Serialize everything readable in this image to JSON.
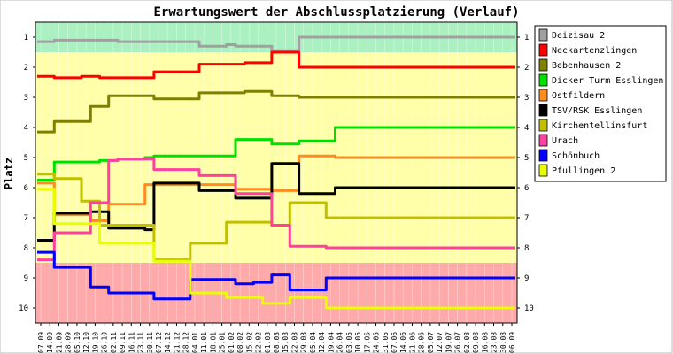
{
  "chart_data": {
    "type": "line",
    "title": "Erwartungswert der Abschlussplatzierung (Verlauf)",
    "ylabel": "Platz",
    "xlabel": "",
    "ylim": [
      10.5,
      0.5
    ],
    "y_ticks": [
      "1",
      "2",
      "3",
      "4",
      "5",
      "6",
      "7",
      "8",
      "9",
      "10"
    ],
    "background_bands": [
      {
        "from": 0.5,
        "to": 1.5,
        "color": "#aaf0c0"
      },
      {
        "from": 1.5,
        "to": 8.5,
        "color": "#ffffaa"
      },
      {
        "from": 8.5,
        "to": 10.5,
        "color": "#ffaaaa"
      }
    ],
    "x": [
      "07.09",
      "14.09",
      "21.09",
      "28.09",
      "05.10",
      "12.10",
      "19.10",
      "26.10",
      "02.11",
      "09.11",
      "16.11",
      "23.11",
      "30.11",
      "07.12",
      "14.12",
      "21.12",
      "28.12",
      "04.01",
      "11.01",
      "18.01",
      "25.01",
      "01.02",
      "08.02",
      "15.02",
      "22.02",
      "01.03",
      "08.03",
      "15.03",
      "22.03",
      "29.03",
      "05.04",
      "12.04",
      "19.04",
      "26.04",
      "03.05",
      "10.05",
      "17.05",
      "24.05",
      "31.05",
      "07.06",
      "14.06",
      "21.06",
      "28.06",
      "05.07",
      "12.07",
      "19.07",
      "26.07",
      "02.08",
      "09.08",
      "16.08",
      "23.08",
      "30.08",
      "06.09"
    ],
    "legend_position": "right",
    "series": [
      {
        "name": "Deizisau 2",
        "color": "#a0a0a0",
        "values": [
          1.15,
          1.15,
          1.1,
          1.1,
          1.1,
          1.1,
          1.1,
          1.1,
          1.1,
          1.15,
          1.15,
          1.15,
          1.15,
          1.15,
          1.15,
          1.15,
          1.15,
          1.15,
          1.3,
          1.3,
          1.3,
          1.25,
          1.3,
          1.3,
          1.3,
          1.3,
          1.45,
          1.45,
          1.45,
          1.0,
          1.0,
          1.0,
          1.0,
          1.0,
          1.0,
          1.0,
          1.0,
          1.0,
          1.0,
          1.0,
          1.0,
          1.0,
          1.0,
          1.0,
          1.0,
          1.0,
          1.0,
          1.0,
          1.0,
          1.0,
          1.0,
          1.0,
          1.0
        ]
      },
      {
        "name": "Neckartenzlingen",
        "color": "#ff0000",
        "values": [
          2.3,
          2.3,
          2.35,
          2.35,
          2.35,
          2.3,
          2.3,
          2.35,
          2.35,
          2.35,
          2.35,
          2.35,
          2.35,
          2.15,
          2.15,
          2.15,
          2.15,
          2.15,
          1.9,
          1.9,
          1.9,
          1.9,
          1.9,
          1.85,
          1.85,
          1.85,
          1.5,
          1.5,
          1.5,
          2.0,
          2.0,
          2.0,
          2.0,
          2.0,
          2.0,
          2.0,
          2.0,
          2.0,
          2.0,
          2.0,
          2.0,
          2.0,
          2.0,
          2.0,
          2.0,
          2.0,
          2.0,
          2.0,
          2.0,
          2.0,
          2.0,
          2.0,
          2.0
        ]
      },
      {
        "name": "Bebenhausen 2",
        "color": "#808000",
        "values": [
          4.15,
          4.15,
          3.8,
          3.8,
          3.8,
          3.8,
          3.3,
          3.3,
          2.95,
          2.95,
          2.95,
          2.95,
          2.95,
          3.05,
          3.05,
          3.05,
          3.05,
          3.05,
          2.85,
          2.85,
          2.85,
          2.85,
          2.85,
          2.8,
          2.8,
          2.8,
          2.95,
          2.95,
          2.95,
          3.0,
          3.0,
          3.0,
          3.0,
          3.0,
          3.0,
          3.0,
          3.0,
          3.0,
          3.0,
          3.0,
          3.0,
          3.0,
          3.0,
          3.0,
          3.0,
          3.0,
          3.0,
          3.0,
          3.0,
          3.0,
          3.0,
          3.0,
          3.0
        ]
      },
      {
        "name": "Dicker Turm Esslingen",
        "color": "#00e000",
        "values": [
          5.75,
          5.75,
          5.15,
          5.15,
          5.15,
          5.15,
          5.15,
          5.1,
          5.1,
          5.05,
          5.05,
          5.05,
          5.0,
          4.95,
          4.95,
          4.95,
          4.95,
          4.95,
          4.95,
          4.95,
          4.95,
          4.95,
          4.4,
          4.4,
          4.4,
          4.4,
          4.55,
          4.55,
          4.55,
          4.45,
          4.45,
          4.45,
          4.45,
          4.0,
          4.0,
          4.0,
          4.0,
          4.0,
          4.0,
          4.0,
          4.0,
          4.0,
          4.0,
          4.0,
          4.0,
          4.0,
          4.0,
          4.0,
          4.0,
          4.0,
          4.0,
          4.0,
          4.0
        ]
      },
      {
        "name": "Ostfildern",
        "color": "#ff8c20",
        "values": [
          5.85,
          5.85,
          6.9,
          6.9,
          6.9,
          6.9,
          7.1,
          7.1,
          6.55,
          6.55,
          6.55,
          6.55,
          5.9,
          5.9,
          5.9,
          5.9,
          5.9,
          5.9,
          5.9,
          5.9,
          5.9,
          5.9,
          6.05,
          6.05,
          6.05,
          6.05,
          6.1,
          6.1,
          6.1,
          4.95,
          4.95,
          4.95,
          4.95,
          5.0,
          5.0,
          5.0,
          5.0,
          5.0,
          5.0,
          5.0,
          5.0,
          5.0,
          5.0,
          5.0,
          5.0,
          5.0,
          5.0,
          5.0,
          5.0,
          5.0,
          5.0,
          5.0,
          5.0
        ]
      },
      {
        "name": "TSV/RSK Esslingen",
        "color": "#000000",
        "values": [
          7.75,
          7.75,
          6.85,
          6.85,
          6.85,
          6.85,
          6.8,
          6.8,
          7.35,
          7.35,
          7.35,
          7.35,
          7.4,
          5.85,
          5.85,
          5.85,
          5.85,
          5.85,
          6.1,
          6.1,
          6.1,
          6.1,
          6.35,
          6.35,
          6.35,
          6.35,
          5.2,
          5.2,
          5.2,
          6.2,
          6.2,
          6.2,
          6.2,
          6.0,
          6.0,
          6.0,
          6.0,
          6.0,
          6.0,
          6.0,
          6.0,
          6.0,
          6.0,
          6.0,
          6.0,
          6.0,
          6.0,
          6.0,
          6.0,
          6.0,
          6.0,
          6.0,
          6.0
        ]
      },
      {
        "name": "Kirchentellinsfurt",
        "color": "#c0c000",
        "values": [
          5.55,
          5.55,
          5.7,
          5.7,
          5.7,
          6.45,
          6.45,
          7.25,
          7.25,
          7.25,
          7.25,
          7.25,
          7.25,
          8.4,
          8.4,
          8.4,
          8.4,
          7.85,
          7.85,
          7.85,
          7.85,
          7.15,
          7.15,
          7.15,
          7.15,
          7.15,
          7.25,
          7.25,
          6.5,
          6.5,
          6.5,
          6.5,
          7.0,
          7.0,
          7.0,
          7.0,
          7.0,
          7.0,
          7.0,
          7.0,
          7.0,
          7.0,
          7.0,
          7.0,
          7.0,
          7.0,
          7.0,
          7.0,
          7.0,
          7.0,
          7.0,
          7.0,
          7.0
        ]
      },
      {
        "name": "Urach",
        "color": "#ff40a0",
        "values": [
          8.4,
          8.4,
          7.5,
          7.5,
          7.5,
          7.5,
          6.5,
          6.5,
          5.1,
          5.05,
          5.05,
          5.05,
          5.05,
          5.4,
          5.4,
          5.4,
          5.4,
          5.4,
          5.6,
          5.6,
          5.6,
          5.6,
          6.2,
          6.2,
          6.2,
          6.2,
          7.25,
          7.25,
          7.95,
          7.95,
          7.95,
          7.95,
          8.0,
          8.0,
          8.0,
          8.0,
          8.0,
          8.0,
          8.0,
          8.0,
          8.0,
          8.0,
          8.0,
          8.0,
          8.0,
          8.0,
          8.0,
          8.0,
          8.0,
          8.0,
          8.0,
          8.0,
          8.0
        ]
      },
      {
        "name": "Schönbuch",
        "color": "#0000ff",
        "values": [
          8.15,
          8.15,
          8.65,
          8.65,
          8.65,
          8.65,
          9.3,
          9.3,
          9.5,
          9.5,
          9.5,
          9.5,
          9.5,
          9.7,
          9.7,
          9.7,
          9.7,
          9.05,
          9.05,
          9.05,
          9.05,
          9.05,
          9.2,
          9.2,
          9.15,
          9.15,
          8.9,
          8.9,
          9.4,
          9.4,
          9.4,
          9.4,
          9.0,
          9.0,
          9.0,
          9.0,
          9.0,
          9.0,
          9.0,
          9.0,
          9.0,
          9.0,
          9.0,
          9.0,
          9.0,
          9.0,
          9.0,
          9.0,
          9.0,
          9.0,
          9.0,
          9.0,
          9.0
        ]
      },
      {
        "name": "Pfullingen 2",
        "color": "#e8ff00",
        "values": [
          6.05,
          6.05,
          7.2,
          7.2,
          7.2,
          7.2,
          7.2,
          7.85,
          7.85,
          7.85,
          7.85,
          7.85,
          7.85,
          8.45,
          8.45,
          8.45,
          8.45,
          9.5,
          9.5,
          9.5,
          9.5,
          9.65,
          9.65,
          9.65,
          9.65,
          9.85,
          9.85,
          9.85,
          9.65,
          9.65,
          9.65,
          9.65,
          10.0,
          10.0,
          10.0,
          10.0,
          10.0,
          10.0,
          10.0,
          10.0,
          10.0,
          10.0,
          10.0,
          10.0,
          10.0,
          10.0,
          10.0,
          10.0,
          10.0,
          10.0,
          10.0,
          10.0,
          10.0
        ]
      }
    ]
  }
}
